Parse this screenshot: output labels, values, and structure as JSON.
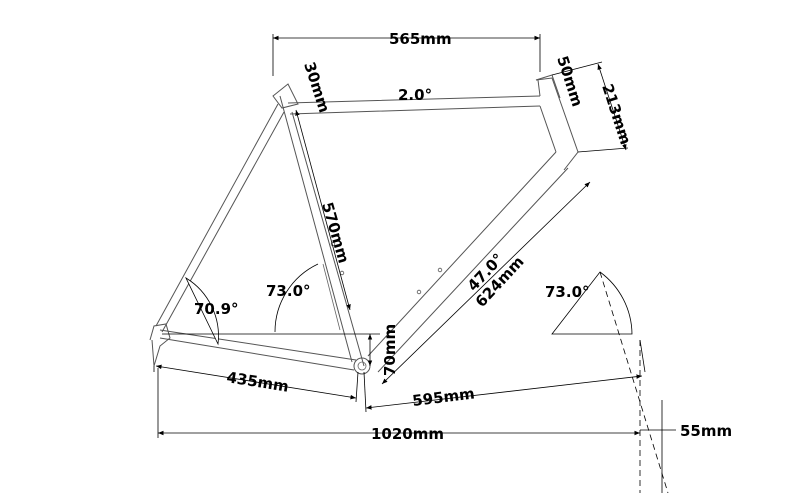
{
  "labels": {
    "top_tube_length": "565mm",
    "top_tube_slope": "2.0°",
    "seat_tube_top": "30mm",
    "head_tube_top": "50mm",
    "head_tube_length": "213mm",
    "seat_tube_length": "570mm",
    "down_tube_angle": "47.0°",
    "down_tube_length": "624mm",
    "seat_stay_angle": "70.9°",
    "seat_tube_angle": "73.0°",
    "head_tube_angle": "73.0°",
    "bb_drop": "70mm",
    "chainstay_length": "435mm",
    "front_center": "595mm",
    "wheelbase": "1020mm",
    "fork_offset": "55mm"
  },
  "colors": {
    "frame_stroke": "#555555",
    "dimension_stroke": "#000000",
    "background": "#ffffff"
  }
}
